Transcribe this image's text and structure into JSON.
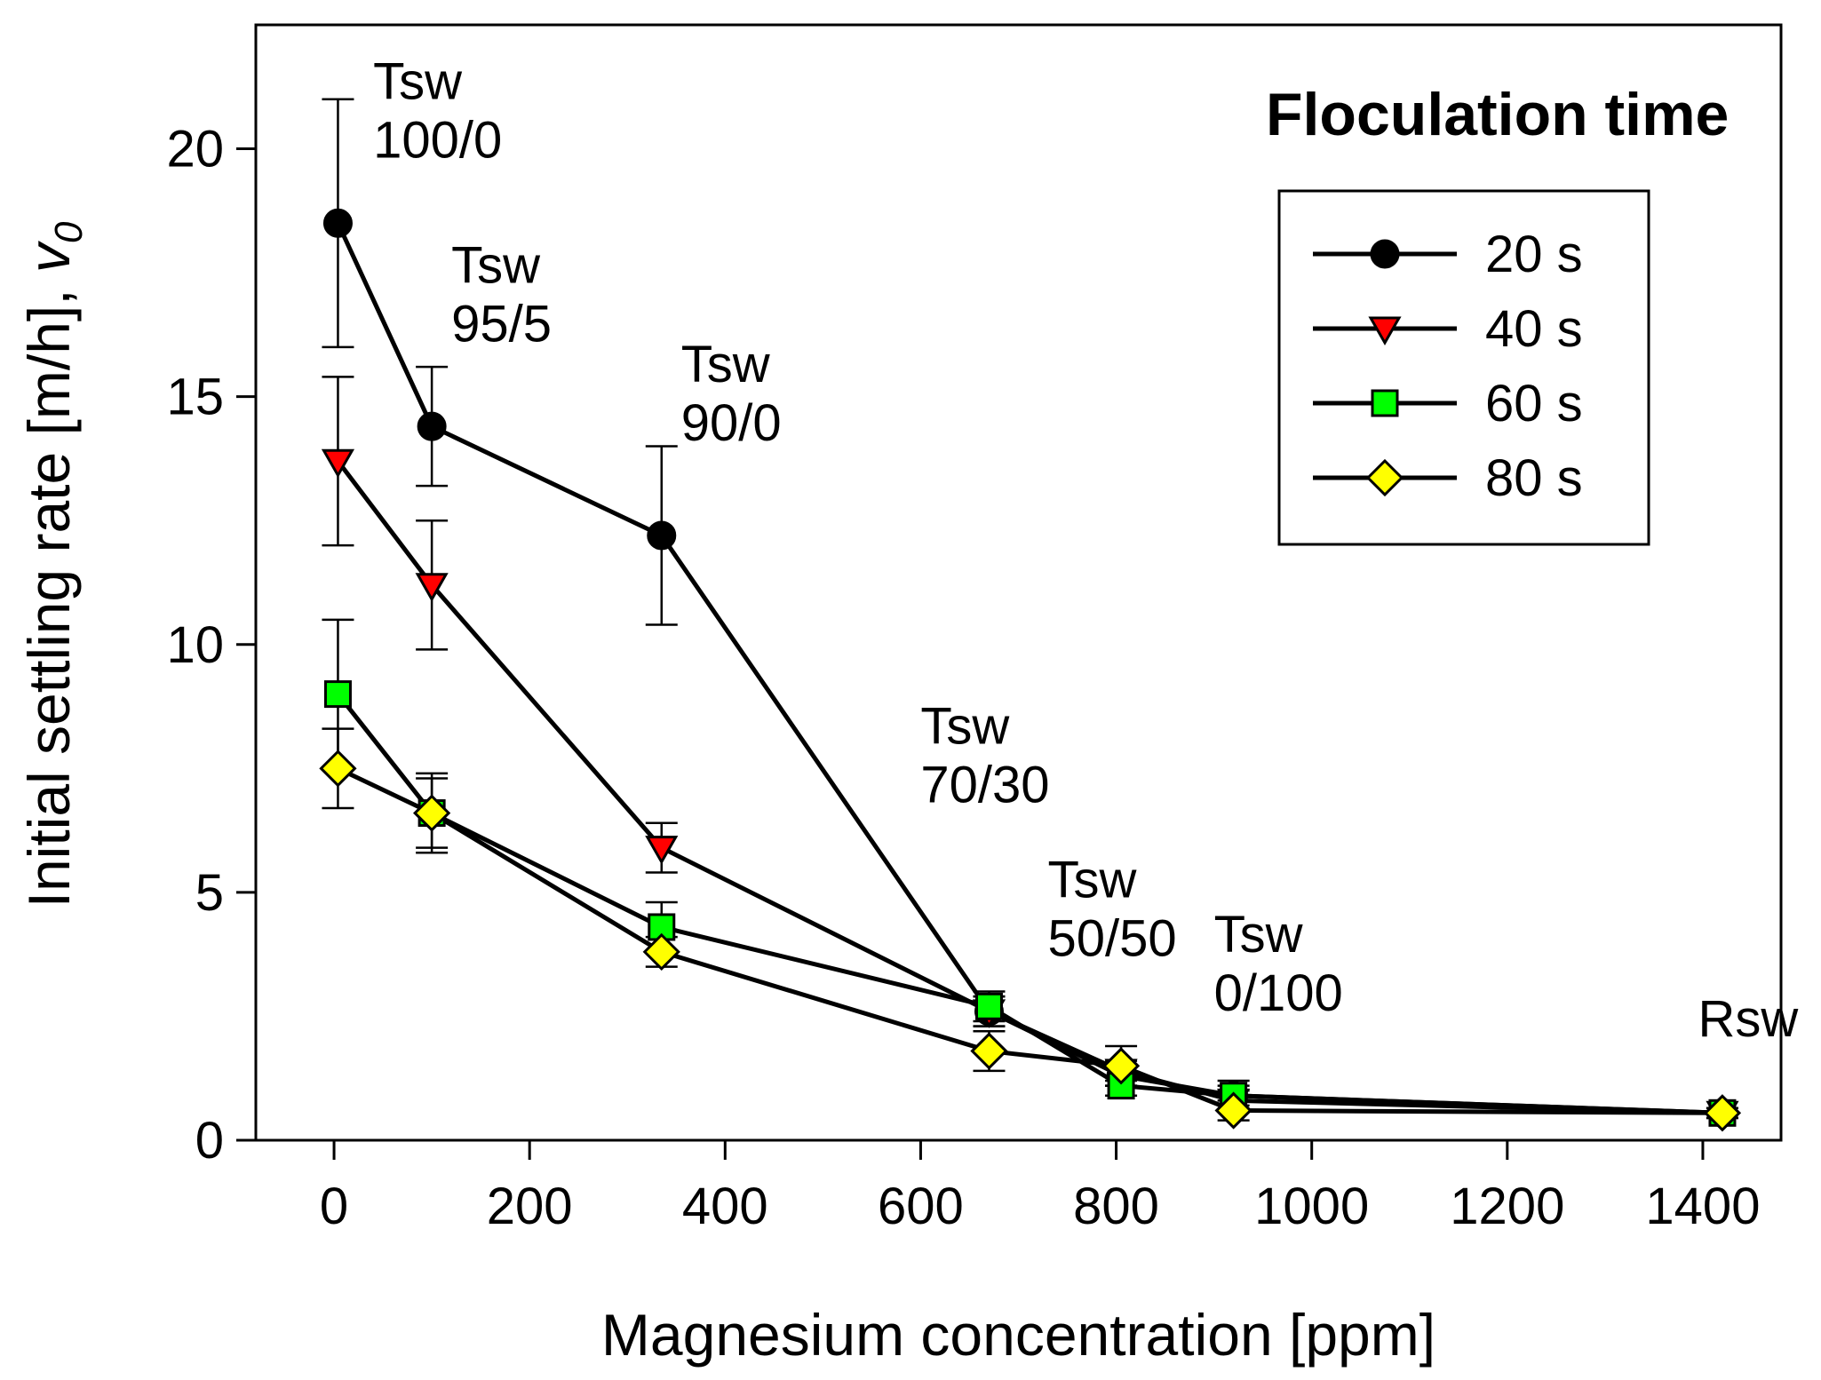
{
  "chart_data": {
    "type": "line",
    "title": "",
    "xlabel": "Magnesium concentration [ppm]",
    "ylabel": "Initial settling rate [m/h], ",
    "ylabel_symbol": "v",
    "ylabel_subscript": "0",
    "xlim": [
      -80,
      1480
    ],
    "ylim": [
      0,
      22.5
    ],
    "xticks": [
      0,
      200,
      400,
      600,
      800,
      1000,
      1200,
      1400
    ],
    "yticks": [
      0,
      5,
      10,
      15,
      20
    ],
    "legend": {
      "title": "Floculation time",
      "position": "top-right"
    },
    "series": [
      {
        "name": "20 s",
        "marker": "circle",
        "color": "#000000",
        "x": [
          4,
          100,
          335,
          670,
          805,
          920,
          1420
        ],
        "y": [
          18.5,
          14.4,
          12.2,
          2.6,
          1.3,
          0.9,
          0.55
        ],
        "err": [
          2.5,
          1.2,
          1.8,
          0.3,
          0.2,
          0.2,
          0.1
        ]
      },
      {
        "name": "40 s",
        "marker": "triangle-down",
        "color": "#ff0000",
        "x": [
          4,
          100,
          335,
          670,
          805,
          920,
          1420
        ],
        "y": [
          13.7,
          11.2,
          5.9,
          2.6,
          1.4,
          0.8,
          0.55
        ],
        "err": [
          1.7,
          1.3,
          0.5,
          0.3,
          0.2,
          0.2,
          0.1
        ]
      },
      {
        "name": "60 s",
        "marker": "square",
        "color": "#00ff00",
        "x": [
          4,
          100,
          335,
          670,
          805,
          920,
          1420
        ],
        "y": [
          9.0,
          6.6,
          4.3,
          2.7,
          1.1,
          0.9,
          0.55
        ],
        "err": [
          1.5,
          0.7,
          0.5,
          0.3,
          0.2,
          0.3,
          0.1
        ]
      },
      {
        "name": "80 s",
        "marker": "diamond",
        "color": "#ffff00",
        "x": [
          4,
          100,
          335,
          670,
          805,
          920,
          1420
        ],
        "y": [
          7.5,
          6.6,
          3.8,
          1.8,
          1.5,
          0.6,
          0.55
        ],
        "err": [
          0.8,
          0.8,
          0.3,
          0.4,
          0.4,
          0.2,
          0.1
        ]
      }
    ],
    "annotations": [
      {
        "lines": [
          "Tsw",
          "100/0"
        ],
        "x": 40,
        "y": 21.0,
        "align": "start"
      },
      {
        "lines": [
          "Tsw",
          "95/5"
        ],
        "x": 120,
        "y": 17.3,
        "align": "start"
      },
      {
        "lines": [
          "Tsw",
          "90/0"
        ],
        "x": 355,
        "y": 15.3,
        "align": "start"
      },
      {
        "lines": [
          "Tsw",
          "70/30"
        ],
        "x": 600,
        "y": 8.0,
        "align": "start"
      },
      {
        "lines": [
          "Tsw",
          "50/50"
        ],
        "x": 730,
        "y": 4.9,
        "align": "start"
      },
      {
        "lines": [
          "Tsw",
          "0/100"
        ],
        "x": 900,
        "y": 3.8,
        "align": "start"
      },
      {
        "lines": [
          "Rsw"
        ],
        "x": 1395,
        "y": 2.1,
        "align": "start"
      }
    ]
  }
}
